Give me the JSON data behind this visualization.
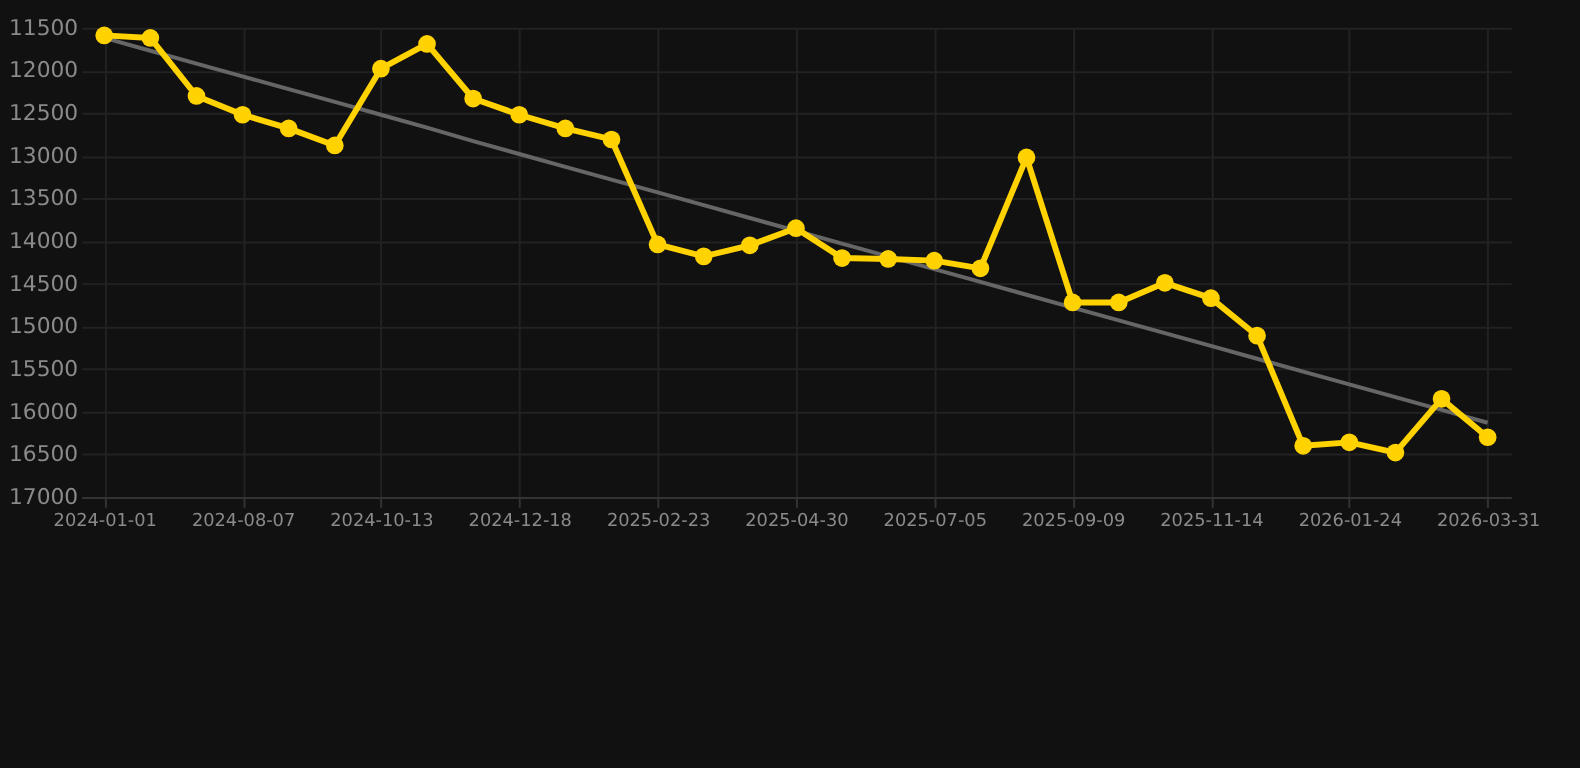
{
  "chart_data": {
    "type": "line",
    "categories": [
      "2024-01-01",
      null,
      null,
      "2024-08-07",
      null,
      null,
      "2024-10-13",
      null,
      null,
      "2024-12-18",
      null,
      null,
      "2025-02-23",
      null,
      null,
      "2025-04-30",
      null,
      null,
      "2025-07-05",
      null,
      null,
      "2025-09-09",
      null,
      null,
      "2025-11-14",
      null,
      null,
      "2026-01-24",
      null,
      null,
      "2026-03-31"
    ],
    "series": [
      {
        "color": "#ffd200",
        "marker": "circle",
        "values": [
          11590,
          11620,
          12300,
          12520,
          12680,
          12880,
          11980,
          11690,
          12330,
          12520,
          12680,
          12810,
          14040,
          14180,
          14050,
          13850,
          14200,
          14210,
          14230,
          14320,
          13020,
          14720,
          14720,
          14490,
          14670,
          15110,
          16400,
          16360,
          16480,
          15850,
          16300
        ]
      },
      {
        "type": "line",
        "color": "#666666",
        "marker": "none",
        "values": [
          11620,
          11770,
          11920,
          12070,
          12220,
          12370,
          12520,
          12670,
          12830,
          12980,
          13130,
          13280,
          13430,
          13580,
          13730,
          13880,
          14030,
          14180,
          14330,
          14480,
          14630,
          14780,
          14930,
          15080,
          15230,
          15380,
          15530,
          15680,
          15830,
          15980,
          16130
        ]
      }
    ],
    "ylim": [
      17000,
      11500
    ],
    "yticks": [
      11500,
      12000,
      12500,
      13000,
      13500,
      14000,
      14500,
      15000,
      15500,
      16000,
      16500,
      17000
    ],
    "grid": true,
    "line_style": "solid"
  }
}
